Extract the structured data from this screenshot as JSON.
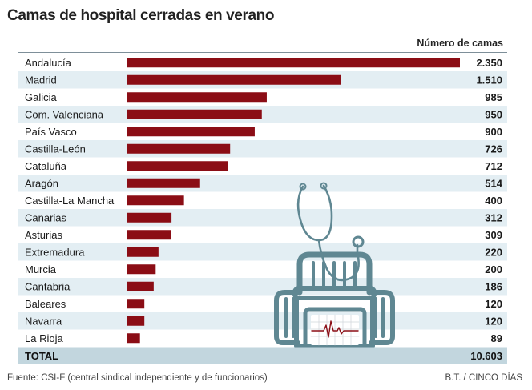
{
  "title": "Camas de hospital cerradas en verano",
  "column_header": "Número de camas",
  "source": "Fuente: CSI-F (central sindical independiente y de funcionarios)",
  "credit": "B.T. / CINCO DÍAS",
  "colors": {
    "bar": "#8b0d15",
    "row_alt": "#e3eef3",
    "total_row": "#c2d6de",
    "illustration": "#5f8792"
  },
  "chart_data": {
    "type": "bar",
    "orientation": "horizontal",
    "title": "Camas de hospital cerradas en verano",
    "value_label": "Número de camas",
    "categories": [
      "Andalucía",
      "Madrid",
      "Galicia",
      "Com. Valenciana",
      "País Vasco",
      "Castilla-León",
      "Cataluña",
      "Aragón",
      "Castilla-La Mancha",
      "Canarias",
      "Asturias",
      "Extremadura",
      "Murcia",
      "Cantabria",
      "Baleares",
      "Navarra",
      "La Rioja"
    ],
    "values": [
      2350,
      1510,
      985,
      950,
      900,
      726,
      712,
      514,
      400,
      312,
      309,
      220,
      200,
      186,
      120,
      120,
      89
    ],
    "value_labels": [
      "2.350",
      "1.510",
      "985",
      "950",
      "900",
      "726",
      "712",
      "514",
      "400",
      "312",
      "309",
      "220",
      "200",
      "186",
      "120",
      "120",
      "89"
    ],
    "total_label": "TOTAL",
    "total_value": "10.603",
    "xlim": [
      0,
      2350
    ]
  }
}
